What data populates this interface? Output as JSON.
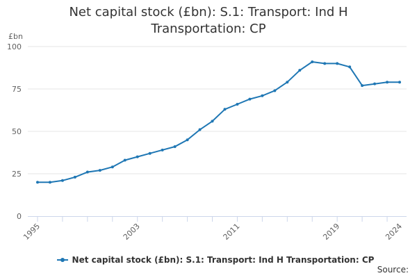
{
  "colors": {
    "series": "#1f77b4",
    "grid": "#e6e6e6",
    "axis": "#ccd6eb"
  },
  "source_label": "Source:",
  "chart_data": {
    "type": "line",
    "title": "Net capital stock (£bn): S.1: Transport: Ind H Transportation: CP",
    "title_lines": [
      "Net capital stock (£bn): S.1: Transport: Ind H",
      "Transportation: CP"
    ],
    "ylabel": "£bn",
    "xlabel": "",
    "ylim": [
      0,
      100
    ],
    "y_ticks": [
      0,
      25,
      50,
      75,
      100
    ],
    "xlim": [
      1995,
      2024
    ],
    "x_tick_labels": [
      1995,
      2003,
      2011,
      2019,
      2024
    ],
    "grid": true,
    "legend_position": "bottom",
    "series": [
      {
        "name": "Net capital stock (£bn): S.1: Transport: Ind H Transportation: CP",
        "x": [
          1995,
          1996,
          1997,
          1998,
          1999,
          2000,
          2001,
          2002,
          2003,
          2004,
          2005,
          2006,
          2007,
          2008,
          2009,
          2010,
          2011,
          2012,
          2013,
          2014,
          2015,
          2016,
          2017,
          2018,
          2019,
          2020,
          2021,
          2022,
          2023,
          2024
        ],
        "values": [
          20,
          20,
          21,
          23,
          26,
          27,
          29,
          33,
          35,
          37,
          39,
          41,
          45,
          51,
          56,
          63,
          66,
          69,
          71,
          74,
          79,
          86,
          91,
          90,
          90,
          88,
          77,
          78,
          79,
          79
        ]
      }
    ]
  }
}
